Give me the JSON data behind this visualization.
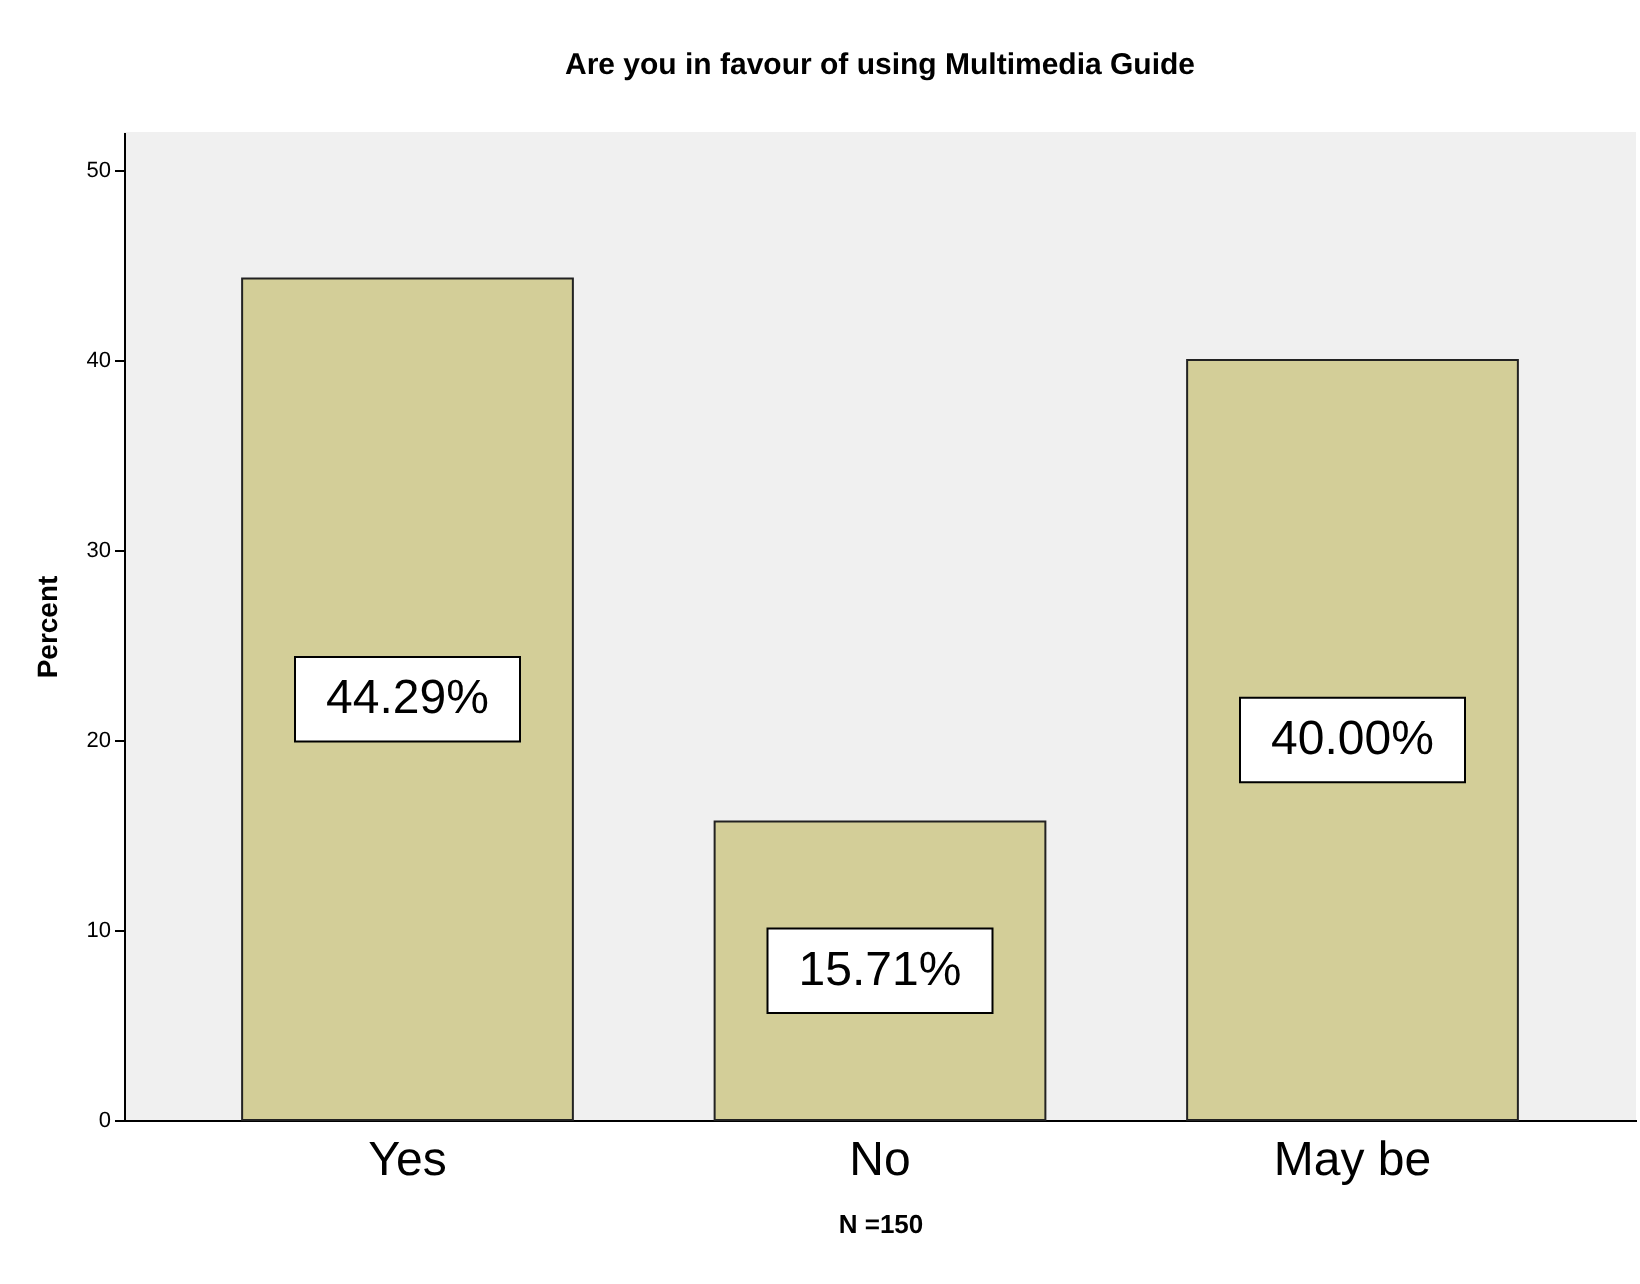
{
  "chart_data": {
    "type": "bar",
    "title": "Are you in favour of using Multimedia Guide",
    "xlabel": "N =150",
    "ylabel": "Percent",
    "categories": [
      "Yes",
      "No",
      "May be"
    ],
    "values": [
      44.29,
      15.71,
      40.0
    ],
    "value_labels": [
      "44.29%",
      "15.71%",
      "40.00%"
    ],
    "color": "#d3ce98",
    "ylim": [
      0,
      52
    ],
    "yticks": [
      0,
      10,
      20,
      30,
      40,
      50
    ],
    "grid": false
  }
}
